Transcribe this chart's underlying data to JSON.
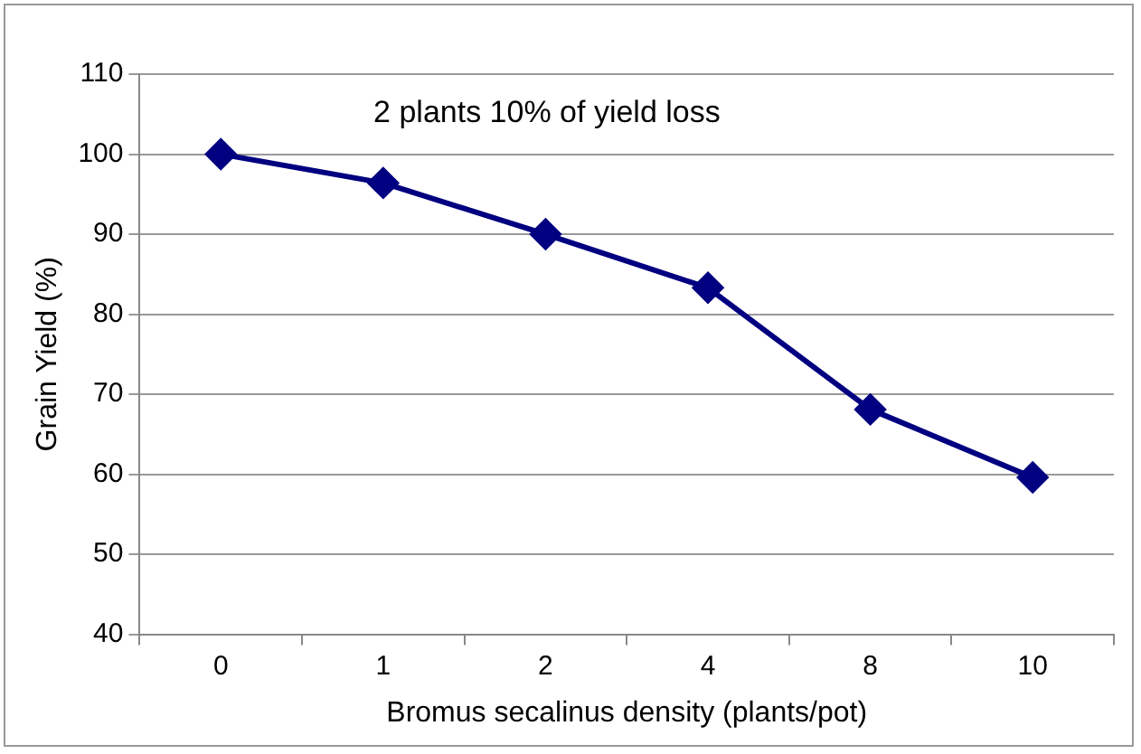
{
  "chart_data": {
    "type": "line",
    "xlabel": "Bromus secalinus density (plants/pot)",
    "ylabel": "Grain Yield (%)",
    "categories": [
      "0",
      "1",
      "2",
      "4",
      "8",
      "10"
    ],
    "series": [
      {
        "color": "#000080",
        "values": [
          100,
          96.4,
          90,
          83.3,
          68.1,
          59.6
        ]
      }
    ],
    "ylim": [
      40,
      110
    ],
    "yticks": [
      40,
      50,
      60,
      70,
      80,
      90,
      100,
      110
    ],
    "grid": "y",
    "legend": false,
    "marker": "diamond",
    "line_style": "solid",
    "annotations": [
      "2 plants 10% of yield loss"
    ]
  }
}
